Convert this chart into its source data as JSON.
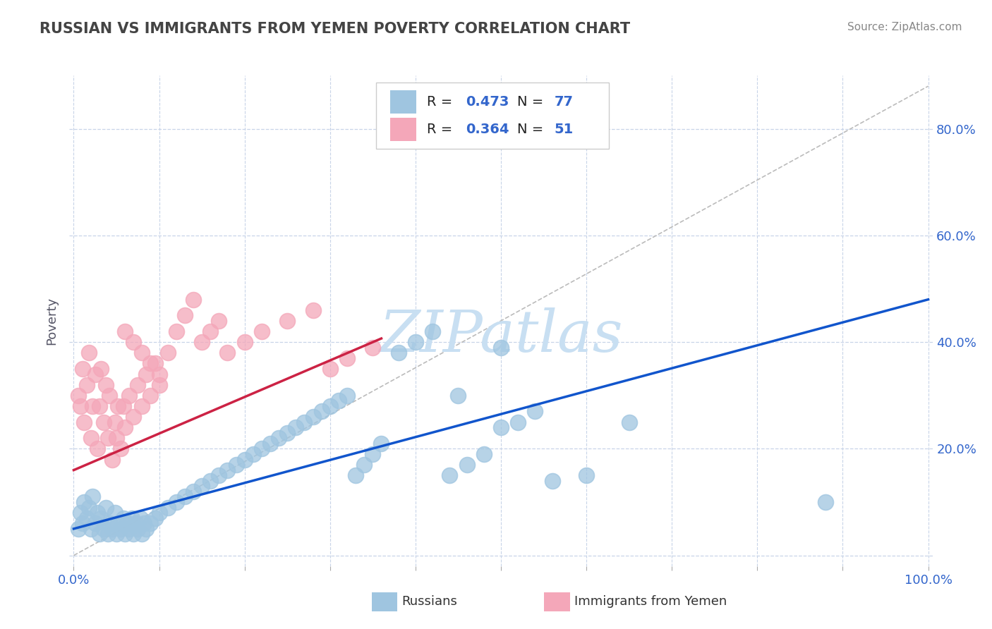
{
  "title": "RUSSIAN VS IMMIGRANTS FROM YEMEN POVERTY CORRELATION CHART",
  "source_text": "Source: ZipAtlas.com",
  "ylabel": "Poverty",
  "xlim": [
    -0.005,
    1.005
  ],
  "ylim": [
    -0.02,
    0.9
  ],
  "xtick_positions": [
    0.0,
    0.1,
    0.2,
    0.3,
    0.4,
    0.5,
    0.6,
    0.7,
    0.8,
    0.9,
    1.0
  ],
  "xtick_labels": [
    "0.0%",
    "",
    "",
    "",
    "",
    "",
    "",
    "",
    "",
    "",
    "100.0%"
  ],
  "ytick_positions": [
    0.0,
    0.2,
    0.4,
    0.6,
    0.8
  ],
  "ytick_labels_right": [
    "",
    "20.0%",
    "40.0%",
    "60.0%",
    "80.0%"
  ],
  "blue_scatter_color": "#9fc5e0",
  "pink_scatter_color": "#f4a7b9",
  "blue_line_color": "#1155cc",
  "pink_line_color": "#cc2244",
  "ref_line_color": "#bbbbbb",
  "grid_color": "#c8d4e8",
  "watermark_color": "#c8dff2",
  "title_color": "#444444",
  "source_color": "#888888",
  "tick_color": "#3366cc",
  "ylabel_color": "#555566",
  "legend_R_color": "#3366cc",
  "R_russian": "0.473",
  "N_russian": "77",
  "R_yemen": "0.364",
  "N_yemen": "51",
  "bottom_label_russian": "Russians",
  "bottom_label_yemen": "Immigrants from Yemen",
  "russians_x": [
    0.005,
    0.008,
    0.01,
    0.012,
    0.015,
    0.018,
    0.02,
    0.022,
    0.025,
    0.028,
    0.03,
    0.032,
    0.035,
    0.038,
    0.04,
    0.042,
    0.045,
    0.048,
    0.05,
    0.052,
    0.055,
    0.058,
    0.06,
    0.062,
    0.065,
    0.068,
    0.07,
    0.072,
    0.075,
    0.078,
    0.08,
    0.082,
    0.085,
    0.09,
    0.095,
    0.1,
    0.11,
    0.12,
    0.13,
    0.14,
    0.15,
    0.16,
    0.17,
    0.18,
    0.19,
    0.2,
    0.21,
    0.22,
    0.23,
    0.24,
    0.25,
    0.26,
    0.27,
    0.28,
    0.29,
    0.3,
    0.31,
    0.32,
    0.33,
    0.34,
    0.35,
    0.36,
    0.38,
    0.4,
    0.42,
    0.44,
    0.46,
    0.48,
    0.5,
    0.52,
    0.54,
    0.56,
    0.6,
    0.65,
    0.88,
    0.5,
    0.45
  ],
  "russians_y": [
    0.05,
    0.08,
    0.06,
    0.1,
    0.07,
    0.09,
    0.05,
    0.11,
    0.06,
    0.08,
    0.04,
    0.07,
    0.05,
    0.09,
    0.04,
    0.06,
    0.05,
    0.08,
    0.04,
    0.06,
    0.05,
    0.07,
    0.04,
    0.06,
    0.05,
    0.07,
    0.04,
    0.06,
    0.05,
    0.07,
    0.04,
    0.06,
    0.05,
    0.06,
    0.07,
    0.08,
    0.09,
    0.1,
    0.11,
    0.12,
    0.13,
    0.14,
    0.15,
    0.16,
    0.17,
    0.18,
    0.19,
    0.2,
    0.21,
    0.22,
    0.23,
    0.24,
    0.25,
    0.26,
    0.27,
    0.28,
    0.29,
    0.3,
    0.15,
    0.17,
    0.19,
    0.21,
    0.38,
    0.4,
    0.42,
    0.15,
    0.17,
    0.19,
    0.24,
    0.25,
    0.27,
    0.14,
    0.15,
    0.25,
    0.1,
    0.39,
    0.3
  ],
  "yemen_x": [
    0.005,
    0.008,
    0.01,
    0.012,
    0.015,
    0.018,
    0.02,
    0.022,
    0.025,
    0.028,
    0.03,
    0.032,
    0.035,
    0.038,
    0.04,
    0.042,
    0.045,
    0.048,
    0.05,
    0.052,
    0.055,
    0.058,
    0.06,
    0.065,
    0.07,
    0.075,
    0.08,
    0.085,
    0.09,
    0.095,
    0.1,
    0.11,
    0.12,
    0.13,
    0.14,
    0.15,
    0.16,
    0.17,
    0.18,
    0.2,
    0.22,
    0.25,
    0.28,
    0.3,
    0.32,
    0.35,
    0.06,
    0.07,
    0.08,
    0.09,
    0.1
  ],
  "yemen_y": [
    0.3,
    0.28,
    0.35,
    0.25,
    0.32,
    0.38,
    0.22,
    0.28,
    0.34,
    0.2,
    0.28,
    0.35,
    0.25,
    0.32,
    0.22,
    0.3,
    0.18,
    0.25,
    0.22,
    0.28,
    0.2,
    0.28,
    0.24,
    0.3,
    0.26,
    0.32,
    0.28,
    0.34,
    0.3,
    0.36,
    0.32,
    0.38,
    0.42,
    0.45,
    0.48,
    0.4,
    0.42,
    0.44,
    0.38,
    0.4,
    0.42,
    0.44,
    0.46,
    0.35,
    0.37,
    0.39,
    0.42,
    0.4,
    0.38,
    0.36,
    0.34
  ]
}
